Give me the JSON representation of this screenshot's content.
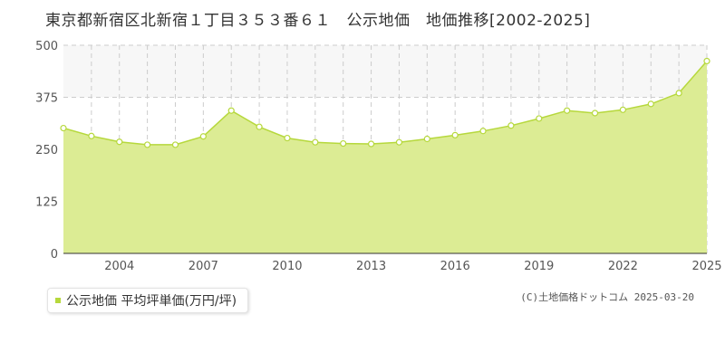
{
  "chart_data": {
    "type": "area",
    "title": "東京都新宿区北新宿１丁目３５３番６１　公示地価　地価推移[2002-2025]",
    "xlabel": "",
    "ylabel": "",
    "x": [
      2002,
      2003,
      2004,
      2005,
      2006,
      2007,
      2008,
      2009,
      2010,
      2011,
      2012,
      2013,
      2014,
      2015,
      2016,
      2017,
      2018,
      2019,
      2020,
      2021,
      2022,
      2023,
      2024,
      2025
    ],
    "series": [
      {
        "name": "公示地価 平均坪単価(万円/坪)",
        "values": [
          301,
          282,
          268,
          261,
          261,
          281,
          343,
          304,
          277,
          267,
          264,
          263,
          267,
          275,
          284,
          294,
          307,
          324,
          343,
          337,
          345,
          359,
          385,
          462
        ]
      }
    ],
    "xticks": [
      "2004",
      "2007",
      "2010",
      "2013",
      "2016",
      "2019",
      "2022",
      "2025"
    ],
    "yticks": [
      "0",
      "125",
      "250",
      "375",
      "500"
    ],
    "ylim": [
      0,
      500
    ],
    "xlim": [
      2002,
      2025
    ],
    "grid": true,
    "legend_position": "bottom-left",
    "colors": {
      "fill": "#dcec94",
      "line": "#b6d83c",
      "band": "#f7f7f7",
      "grid": "#cccccc"
    }
  },
  "credit": "(C)土地価格ドットコム 2025-03-20"
}
